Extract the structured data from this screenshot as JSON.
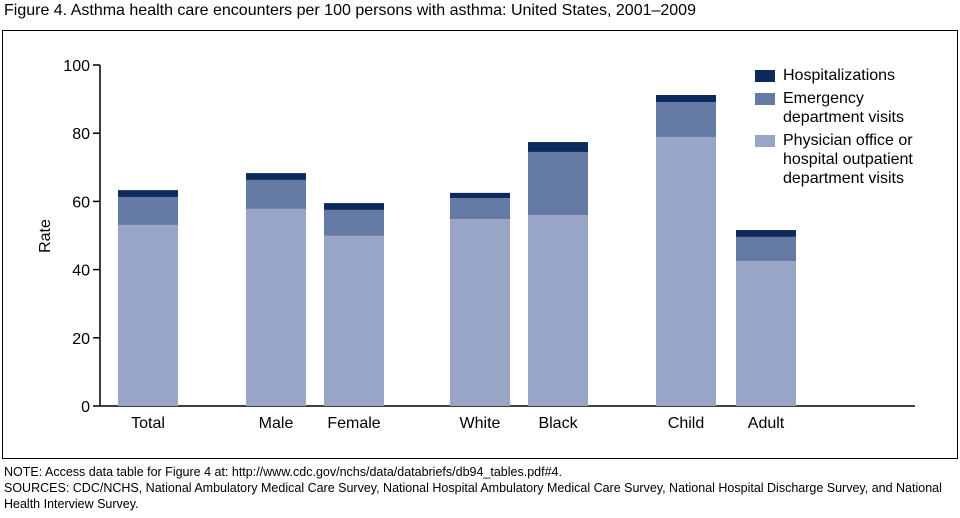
{
  "chart_data": {
    "type": "stacked_bar",
    "title": "Figure 4. Asthma health care encounters per 100 persons with asthma: United States, 2001–2009",
    "ylabel": "Rate",
    "categories": [
      "Total",
      "Male",
      "Female",
      "White",
      "Black",
      "Child",
      "Adult"
    ],
    "series": [
      {
        "name": "Physician office or hospital outpatient department visits",
        "color": "#98a5c6",
        "values": [
          53.1,
          57.8,
          49.9,
          54.8,
          56.0,
          78.9,
          42.5
        ]
      },
      {
        "name": "Emergency department visits",
        "color": "#6579a5",
        "values": [
          8.2,
          8.5,
          7.6,
          6.2,
          18.5,
          10.2,
          7.1
        ]
      },
      {
        "name": "Hospitalizations",
        "color": "#0d2a5c",
        "values": [
          2.0,
          2.0,
          2.0,
          1.5,
          2.9,
          2.1,
          2.0
        ]
      }
    ],
    "ylim": [
      0,
      100
    ],
    "yticks": [
      0,
      20,
      40,
      60,
      80,
      100
    ],
    "grid": false,
    "legend": "upper right"
  },
  "notes": {
    "note": "NOTE: Access data table for Figure 4 at: http://www.cdc.gov/nchs/data/databriefs/db94_tables.pdf#4.",
    "sources": "SOURCES: CDC/NCHS, National Ambulatory Medical Care Survey, National Hospital Ambulatory Medical Care Survey, National Hospital Discharge Survey, and National Health Interview Survey."
  }
}
